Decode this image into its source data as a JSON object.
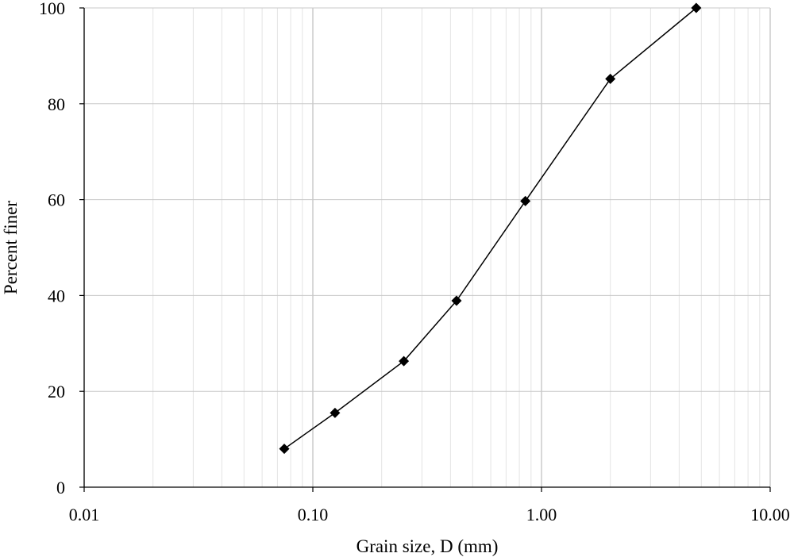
{
  "chart_data": {
    "type": "scatter",
    "x_scale": "log",
    "xlim": [
      0.01,
      10
    ],
    "ylim": [
      0,
      100
    ],
    "xlabel": "Grain size, D (mm)",
    "ylabel": "Percent finer",
    "x_tick_labels": [
      "0.01",
      "0.10",
      "1.00",
      "10.00"
    ],
    "x_tick_values": [
      0.01,
      0.1,
      1,
      10
    ],
    "y_tick_labels": [
      "0",
      "20",
      "40",
      "60",
      "80",
      "100"
    ],
    "y_tick_values": [
      0,
      20,
      40,
      60,
      80,
      100
    ],
    "grid": true,
    "minor_grid_x": true,
    "marker": "diamond",
    "line": true,
    "series": [
      {
        "x": [
          0.075,
          0.125,
          0.25,
          0.425,
          0.85,
          2.0,
          4.75
        ],
        "y": [
          8,
          15.5,
          26.3,
          38.9,
          59.7,
          85.2,
          100
        ]
      }
    ],
    "colors": {
      "line": "#000000",
      "marker": "#000000",
      "grid": "#c8c8c8",
      "axis": "#000000"
    }
  }
}
